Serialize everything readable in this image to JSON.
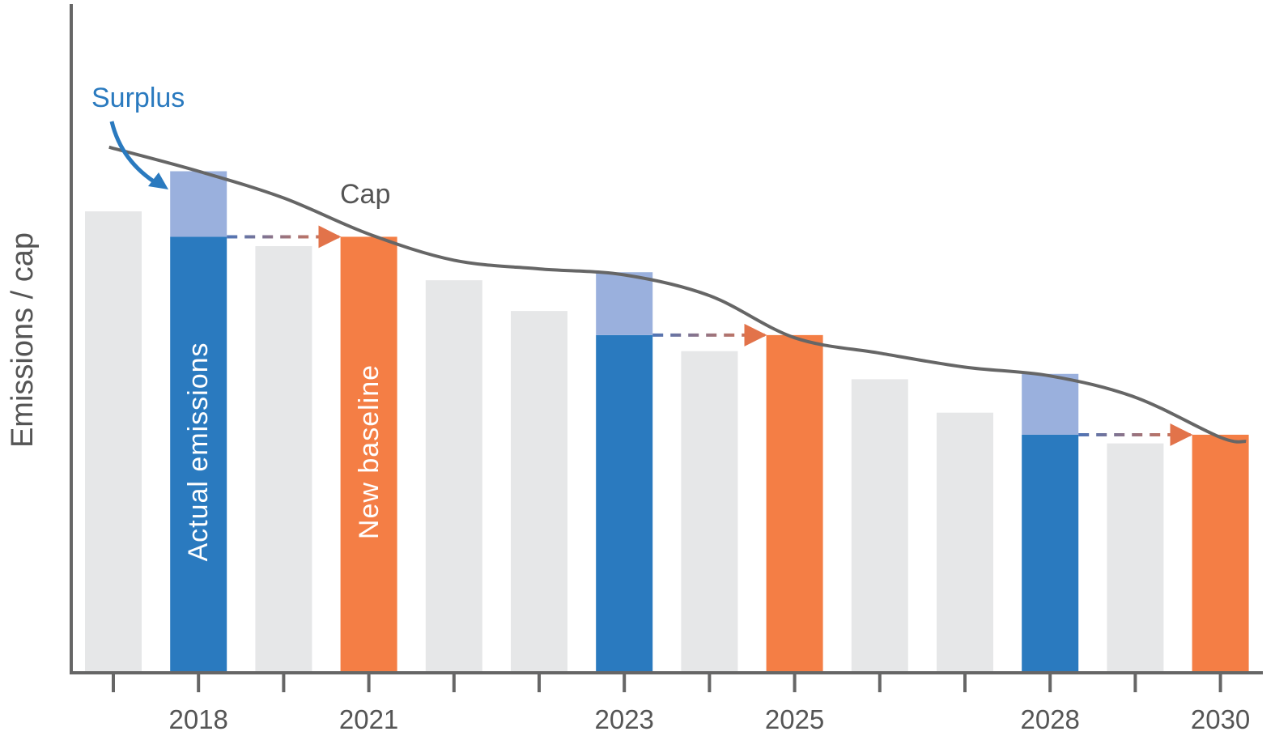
{
  "chart_data": {
    "type": "bar",
    "title": "",
    "xlabel": "",
    "ylabel": "Emissions / cap",
    "ylim": [
      0,
      100
    ],
    "grid": false,
    "tick_labels": [
      "",
      "2018",
      "",
      "2021",
      "",
      "",
      "2023",
      "",
      "2025",
      "",
      "",
      "2028",
      "",
      "2030"
    ],
    "bars": [
      {
        "kind": "other",
        "value": 69.0
      },
      {
        "kind": "actual",
        "value": 65.2,
        "surplus": 9.8
      },
      {
        "kind": "other",
        "value": 63.8
      },
      {
        "kind": "baseline",
        "value": 65.2
      },
      {
        "kind": "other",
        "value": 58.7
      },
      {
        "kind": "other",
        "value": 54.1
      },
      {
        "kind": "actual",
        "value": 50.5,
        "surplus": 9.4
      },
      {
        "kind": "other",
        "value": 48.1
      },
      {
        "kind": "baseline",
        "value": 50.5
      },
      {
        "kind": "other",
        "value": 43.9
      },
      {
        "kind": "other",
        "value": 38.9
      },
      {
        "kind": "actual",
        "value": 35.6,
        "surplus": 9.1
      },
      {
        "kind": "other",
        "value": 34.3
      },
      {
        "kind": "baseline",
        "value": 35.6
      }
    ],
    "cap_line": {
      "label": "Cap",
      "points": [
        [
          -0.05,
          78.6
        ],
        [
          1.0,
          75.0
        ],
        [
          2.0,
          71.0
        ],
        [
          3.0,
          65.6
        ],
        [
          4.0,
          61.7
        ],
        [
          5.0,
          60.4
        ],
        [
          6.0,
          59.5
        ],
        [
          7.0,
          56.4
        ],
        [
          8.0,
          50.1
        ],
        [
          9.0,
          47.8
        ],
        [
          10.0,
          45.7
        ],
        [
          11.0,
          44.4
        ],
        [
          12.0,
          41.2
        ],
        [
          13.0,
          35.2
        ],
        [
          13.3,
          34.6
        ]
      ]
    },
    "carry_forward": [
      {
        "from": 1,
        "to": 3
      },
      {
        "from": 6,
        "to": 8
      },
      {
        "from": 11,
        "to": 13
      }
    ],
    "annotations": {
      "surplus": "Surplus",
      "actual_emissions": "Actual emissions",
      "new_baseline": "New baseline"
    },
    "colors": {
      "other": "#e6e7e8",
      "actual": "#2a7abf",
      "surplus": "#9ab0dd",
      "baseline": "#f47e45",
      "cap": "#666666",
      "axis": "#666666",
      "surplus_label": "#2a7abf",
      "arrow_start": "#4f74b6",
      "arrow_end": "#e2734a"
    }
  }
}
